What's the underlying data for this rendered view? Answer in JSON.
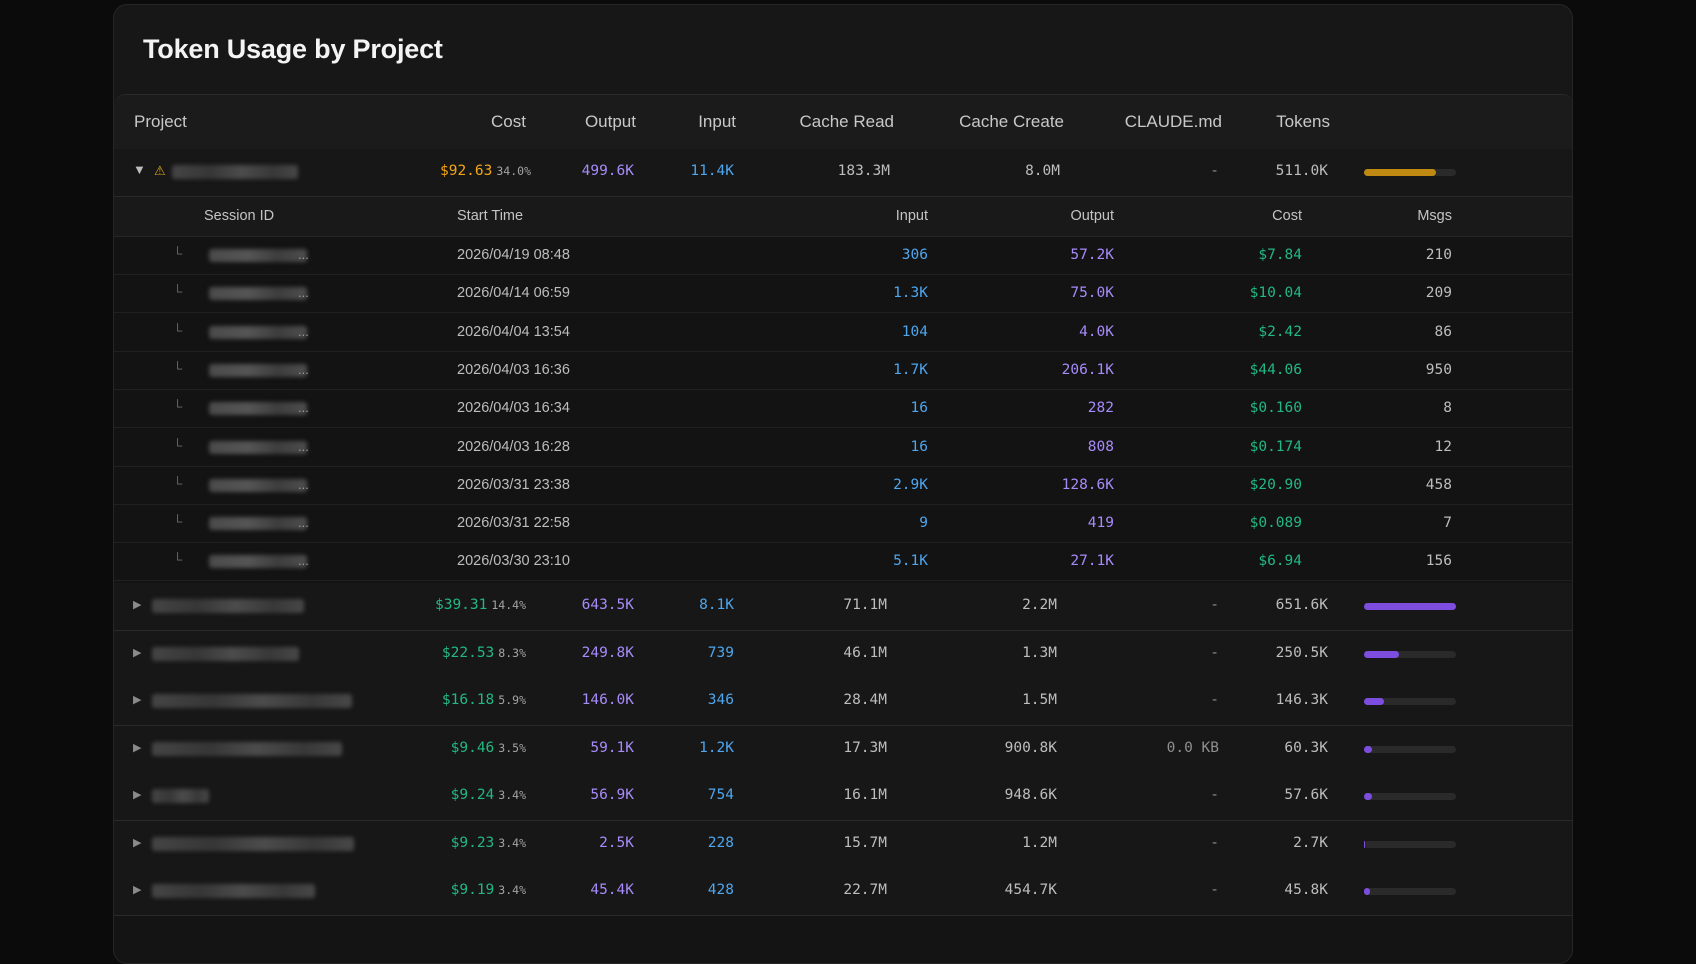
{
  "title": "Token Usage by Project",
  "columns": [
    "Project",
    "Cost",
    "Output",
    "Input",
    "Cache Read",
    "Cache Create",
    "CLAUDE.md",
    "Tokens"
  ],
  "session_columns": [
    "Session ID",
    "Start Time",
    "Input",
    "Output",
    "Cost",
    "Msgs"
  ],
  "icons": {
    "expanded": "triangle-down-icon",
    "collapsed": "triangle-right-icon",
    "warning": "warning-icon",
    "session": "tree-branch-icon"
  },
  "colors": {
    "cost_expanded": "#f2a516",
    "cost": "#22b883",
    "output": "#a78bfa",
    "input": "#4ea6ee",
    "bar": "#7c4ddf",
    "bar_expanded": "#c08a12"
  },
  "expanded_project": {
    "arrow": "▼",
    "warning": "⚠",
    "cost": "$92.63",
    "pct": "34.0%",
    "output": "499.6K",
    "input": "11.4K",
    "cache_read": "183.3M",
    "cache_create": "8.0M",
    "claude_md": "-",
    "tokens": "511.0K",
    "bar_fraction": 0.78
  },
  "sessions": [
    {
      "tick": "└",
      "ellipsis": "...",
      "start": "2026/04/19 08:48",
      "input": "306",
      "output": "57.2K",
      "cost": "$7.84",
      "msgs": "210"
    },
    {
      "tick": "└",
      "ellipsis": "...",
      "start": "2026/04/14 06:59",
      "input": "1.3K",
      "output": "75.0K",
      "cost": "$10.04",
      "msgs": "209"
    },
    {
      "tick": "└",
      "ellipsis": "...",
      "start": "2026/04/04 13:54",
      "input": "104",
      "output": "4.0K",
      "cost": "$2.42",
      "msgs": "86"
    },
    {
      "tick": "└",
      "ellipsis": "...",
      "start": "2026/04/03 16:36",
      "input": "1.7K",
      "output": "206.1K",
      "cost": "$44.06",
      "msgs": "950"
    },
    {
      "tick": "└",
      "ellipsis": "...",
      "start": "2026/04/03 16:34",
      "input": "16",
      "output": "282",
      "cost": "$0.160",
      "msgs": "8"
    },
    {
      "tick": "└",
      "ellipsis": "...",
      "start": "2026/04/03 16:28",
      "input": "16",
      "output": "808",
      "cost": "$0.174",
      "msgs": "12"
    },
    {
      "tick": "└",
      "ellipsis": "...",
      "start": "2026/03/31 23:38",
      "input": "2.9K",
      "output": "128.6K",
      "cost": "$20.90",
      "msgs": "458"
    },
    {
      "tick": "└",
      "ellipsis": "...",
      "start": "2026/03/31 22:58",
      "input": "9",
      "output": "419",
      "cost": "$0.089",
      "msgs": "7"
    },
    {
      "tick": "└",
      "ellipsis": "...",
      "start": "2026/03/30 23:10",
      "input": "5.1K",
      "output": "27.1K",
      "cost": "$6.94",
      "msgs": "156"
    }
  ],
  "projects": [
    {
      "arrow": "▶",
      "cost": "$39.31",
      "pct": "14.4%",
      "output": "643.5K",
      "input": "8.1K",
      "cache_read": "71.1M",
      "cache_create": "2.2M",
      "claude_md": "-",
      "tokens": "651.6K",
      "bar_fraction": 1.0
    },
    {
      "arrow": "▶",
      "cost": "$22.53",
      "pct": "8.3%",
      "output": "249.8K",
      "input": "739",
      "cache_read": "46.1M",
      "cache_create": "1.3M",
      "claude_md": "-",
      "tokens": "250.5K",
      "bar_fraction": 0.38
    },
    {
      "arrow": "▶",
      "cost": "$16.18",
      "pct": "5.9%",
      "output": "146.0K",
      "input": "346",
      "cache_read": "28.4M",
      "cache_create": "1.5M",
      "claude_md": "-",
      "tokens": "146.3K",
      "bar_fraction": 0.22
    },
    {
      "arrow": "▶",
      "cost": "$9.46",
      "pct": "3.5%",
      "output": "59.1K",
      "input": "1.2K",
      "cache_read": "17.3M",
      "cache_create": "900.8K",
      "claude_md": "0.0 KB",
      "tokens": "60.3K",
      "bar_fraction": 0.09
    },
    {
      "arrow": "▶",
      "cost": "$9.24",
      "pct": "3.4%",
      "output": "56.9K",
      "input": "754",
      "cache_read": "16.1M",
      "cache_create": "948.6K",
      "claude_md": "-",
      "tokens": "57.6K",
      "bar_fraction": 0.09
    },
    {
      "arrow": "▶",
      "cost": "$9.23",
      "pct": "3.4%",
      "output": "2.5K",
      "input": "228",
      "cache_read": "15.7M",
      "cache_create": "1.2M",
      "claude_md": "-",
      "tokens": "2.7K",
      "bar_fraction": 0.004
    },
    {
      "arrow": "▶",
      "cost": "$9.19",
      "pct": "3.4%",
      "output": "45.4K",
      "input": "428",
      "cache_read": "22.7M",
      "cache_create": "454.7K",
      "claude_md": "-",
      "tokens": "45.8K",
      "bar_fraction": 0.07
    }
  ]
}
